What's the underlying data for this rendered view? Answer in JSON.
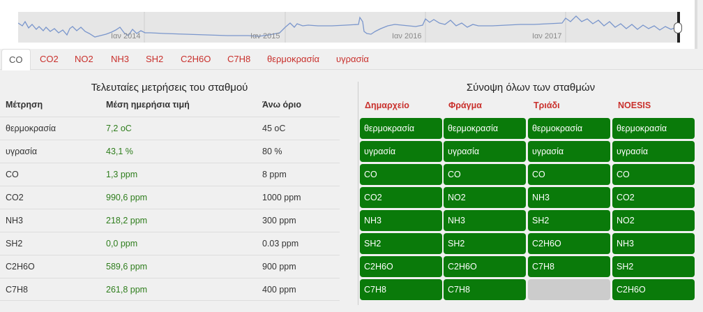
{
  "navigator": {
    "labels": [
      "Ιαν 2014",
      "Ιαν 2015",
      "Ιαν 2016",
      "Ιαν 2017"
    ]
  },
  "tabs": [
    "CO",
    "CO2",
    "NO2",
    "NH3",
    "SH2",
    "C2H6O",
    "C7H8",
    "θερμοκρασία",
    "υγρασία"
  ],
  "active_tab": "CO",
  "left": {
    "title": "Τελευταίες μετρήσεις του σταθμού",
    "headers": [
      "Μέτρηση",
      "Μέση ημερήσια τιμή",
      "Άνω όριο"
    ],
    "rows": [
      [
        "θερμοκρασία",
        "7,2 oC",
        "45 oC"
      ],
      [
        "υγρασία",
        "43,1 %",
        "80 %"
      ],
      [
        "CO",
        "1,3 ppm",
        "8 ppm"
      ],
      [
        "CO2",
        "990,6 ppm",
        "1000 ppm"
      ],
      [
        "NH3",
        "218,2 ppm",
        "300 ppm"
      ],
      [
        "SH2",
        "0,0 ppm",
        "0.03 ppm"
      ],
      [
        "C2H6O",
        "589,6 ppm",
        "900 ppm"
      ],
      [
        "C7H8",
        "261,8 ppm",
        "400 ppm"
      ]
    ]
  },
  "right": {
    "title": "Σύνοψη όλων των σταθμών",
    "stations": [
      {
        "name": "Δημαρχείο",
        "items": [
          "θερμοκρασία",
          "υγρασία",
          "CO",
          "CO2",
          "NH3",
          "SH2",
          "C2H6O",
          "C7H8"
        ]
      },
      {
        "name": "Φράγμα",
        "items": [
          "θερμοκρασία",
          "υγρασία",
          "CO",
          "NO2",
          "NH3",
          "SH2",
          "C2H6O",
          "C7H8"
        ]
      },
      {
        "name": "Τριάδι",
        "items": [
          "θερμοκρασία",
          "υγρασία",
          "CO",
          "NH3",
          "SH2",
          "C2H6O",
          "C7H8",
          ""
        ]
      },
      {
        "name": "NOESIS",
        "items": [
          "θερμοκρασία",
          "υγρασία",
          "CO",
          "CO2",
          "NO2",
          "NH3",
          "SH2",
          "C2H6O"
        ]
      }
    ]
  },
  "colors": {
    "ok_cell": "#0a7a0a",
    "empty_cell": "#cccccc",
    "accent_red": "#c9302c",
    "value_green": "#2e7d1c",
    "series_line": "#7a96cc"
  }
}
